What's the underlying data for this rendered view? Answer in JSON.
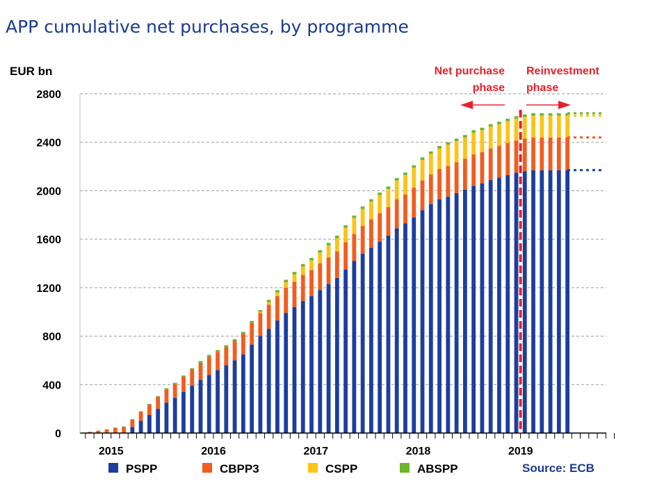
{
  "title": "APP cumulative net purchases, by programme",
  "source": "Source: ECB",
  "colors": {
    "PSPP": "#1d3e9e",
    "CBPP3": "#f25c1f",
    "CSPP": "#fdc316",
    "ABSPP": "#6cb52d",
    "phase_line": "#e8202a",
    "grid": "#9a9a9a"
  },
  "annotations": {
    "net_purchase": [
      "Net purchase",
      "phase"
    ],
    "reinvestment": [
      "Reinvestment",
      "phase"
    ]
  },
  "chart_data": {
    "type": "bar",
    "stacked": true,
    "title": "",
    "ylabel": "EUR bn",
    "xlabel": "",
    "ylim": [
      0,
      2800
    ],
    "yticks": [
      0,
      400,
      800,
      1200,
      1600,
      2000,
      2400,
      2800
    ],
    "grid": true,
    "legend_position": "bottom",
    "year_labels": [
      {
        "label": "2015",
        "month": "2015-01"
      },
      {
        "label": "2016",
        "month": "2016-01"
      },
      {
        "label": "2017",
        "month": "2017-01"
      },
      {
        "label": "2018",
        "month": "2018-01"
      },
      {
        "label": "2019",
        "month": "2019-01"
      }
    ],
    "categories": [
      "2014-10",
      "2014-11",
      "2014-12",
      "2015-01",
      "2015-02",
      "2015-03",
      "2015-04",
      "2015-05",
      "2015-06",
      "2015-07",
      "2015-08",
      "2015-09",
      "2015-10",
      "2015-11",
      "2015-12",
      "2016-01",
      "2016-02",
      "2016-03",
      "2016-04",
      "2016-05",
      "2016-06",
      "2016-07",
      "2016-08",
      "2016-09",
      "2016-10",
      "2016-11",
      "2016-12",
      "2017-01",
      "2017-02",
      "2017-03",
      "2017-04",
      "2017-05",
      "2017-06",
      "2017-07",
      "2017-08",
      "2017-09",
      "2017-10",
      "2017-11",
      "2017-12",
      "2018-01",
      "2018-02",
      "2018-03",
      "2018-04",
      "2018-05",
      "2018-06",
      "2018-07",
      "2018-08",
      "2018-09",
      "2018-10",
      "2018-11",
      "2018-12",
      "2019-01",
      "2019-02",
      "2019-03",
      "2019-04",
      "2019-05",
      "2019-06"
    ],
    "axis_end_month": "2019-11",
    "series": [
      {
        "name": "PSPP",
        "values": [
          0,
          0,
          0,
          0,
          0,
          50,
          100,
          150,
          200,
          250,
          290,
          340,
          390,
          440,
          480,
          520,
          560,
          600,
          650,
          730,
          800,
          860,
          930,
          990,
          1040,
          1090,
          1130,
          1180,
          1230,
          1280,
          1350,
          1420,
          1480,
          1530,
          1580,
          1630,
          1690,
          1730,
          1780,
          1840,
          1890,
          1930,
          1950,
          1980,
          2010,
          2040,
          2060,
          2090,
          2110,
          2130,
          2150,
          2160,
          2170,
          2170,
          2170,
          2170,
          2170
        ]
      },
      {
        "name": "CBPP3",
        "values": [
          10,
          20,
          30,
          40,
          50,
          60,
          75,
          85,
          100,
          110,
          115,
          125,
          135,
          140,
          150,
          150,
          150,
          160,
          170,
          180,
          190,
          200,
          200,
          210,
          210,
          215,
          215,
          220,
          220,
          220,
          225,
          225,
          230,
          235,
          235,
          235,
          240,
          240,
          245,
          245,
          245,
          250,
          255,
          255,
          255,
          260,
          260,
          260,
          260,
          265,
          265,
          270,
          270,
          270,
          270,
          270,
          270
        ]
      },
      {
        "name": "CSPP",
        "values": [
          0,
          0,
          0,
          0,
          0,
          0,
          0,
          0,
          0,
          0,
          0,
          0,
          0,
          0,
          0,
          0,
          0,
          0,
          0,
          0,
          10,
          20,
          30,
          45,
          60,
          70,
          80,
          90,
          100,
          110,
          120,
          130,
          140,
          145,
          150,
          150,
          155,
          160,
          165,
          170,
          170,
          170,
          175,
          175,
          175,
          180,
          180,
          180,
          180,
          180,
          180,
          180,
          180,
          180,
          180,
          180,
          180
        ]
      },
      {
        "name": "ABSPP",
        "values": [
          0,
          0,
          0,
          5,
          5,
          5,
          5,
          5,
          5,
          10,
          10,
          10,
          10,
          15,
          15,
          15,
          15,
          15,
          15,
          15,
          15,
          20,
          20,
          20,
          20,
          20,
          20,
          20,
          20,
          20,
          20,
          20,
          20,
          20,
          20,
          20,
          20,
          20,
          20,
          20,
          20,
          20,
          20,
          20,
          20,
          20,
          20,
          20,
          20,
          20,
          20,
          20,
          20,
          20,
          20,
          20,
          20
        ]
      }
    ]
  },
  "legend": {
    "items": [
      {
        "label": "PSPP"
      },
      {
        "label": "CBPP3"
      },
      {
        "label": "CSPP"
      },
      {
        "label": "ABSPP"
      }
    ]
  }
}
